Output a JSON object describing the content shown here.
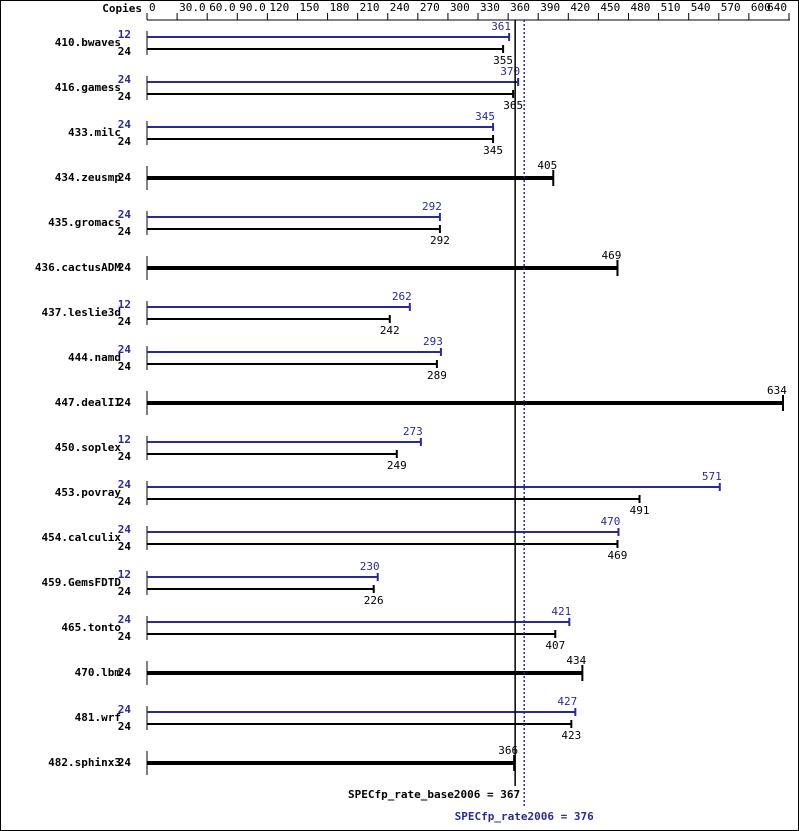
{
  "chart_data": {
    "type": "bar",
    "copies_header": "Copies",
    "categories": [
      "410.bwaves",
      "416.gamess",
      "433.milc",
      "434.zeusmp",
      "435.gromacs",
      "436.cactusADM",
      "437.leslie3d",
      "444.namd",
      "447.dealII",
      "450.soplex",
      "453.povray",
      "454.calculix",
      "459.GemsFDTD",
      "465.tonto",
      "470.lbm",
      "481.wrf",
      "482.sphinx3"
    ],
    "series": [
      {
        "color": "#2a2a96",
        "copies": [
          12,
          24,
          24,
          null,
          24,
          null,
          12,
          24,
          null,
          12,
          24,
          24,
          12,
          24,
          null,
          24,
          null
        ],
        "values": [
          361,
          370,
          345,
          null,
          292,
          null,
          262,
          293,
          null,
          273,
          571,
          470,
          230,
          421,
          null,
          427,
          null
        ]
      },
      {
        "color": "#000000",
        "copies": [
          24,
          24,
          24,
          24,
          24,
          24,
          24,
          24,
          24,
          24,
          24,
          24,
          24,
          24,
          24,
          24,
          24
        ],
        "values": [
          355,
          365,
          345,
          405,
          292,
          469,
          242,
          289,
          634,
          249,
          491,
          469,
          226,
          407,
          434,
          423,
          366
        ]
      }
    ],
    "xlim": [
      0,
      640
    ],
    "xticks": [
      0,
      {
        "value": 30,
        "label": "30.0"
      },
      {
        "value": 60,
        "label": "60.0"
      },
      {
        "value": 90,
        "label": "90.0"
      },
      120,
      150,
      180,
      210,
      240,
      270,
      300,
      330,
      360,
      390,
      420,
      450,
      480,
      510,
      540,
      570,
      600,
      640
    ],
    "reference_lines": [
      {
        "value": 367,
        "label": "SPECfp_rate_base2006 = 367",
        "color": "#000000",
        "style": "solid"
      },
      {
        "value": 376,
        "label": "SPECfp_rate2006 = 376",
        "color": "#2a2a96",
        "style": "dotted"
      }
    ]
  }
}
